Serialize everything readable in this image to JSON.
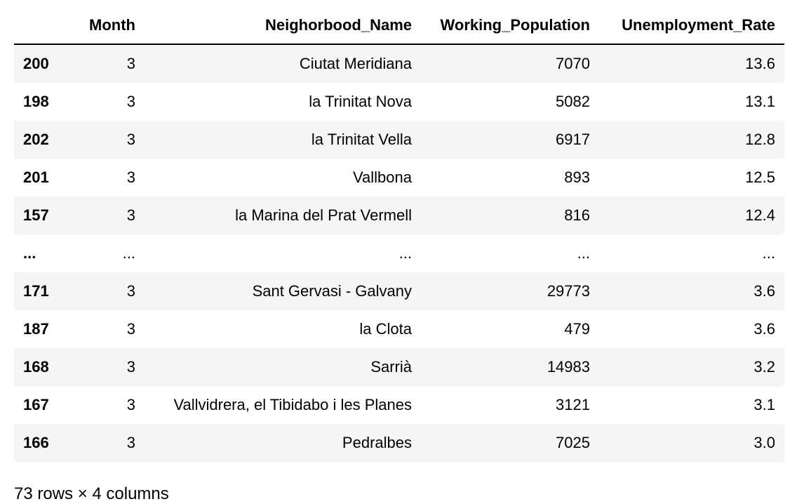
{
  "table": {
    "columns": [
      "",
      "Month",
      "Neighorbood_Name",
      "Working_Population",
      "Unemployment_Rate"
    ],
    "rows": [
      {
        "index": "200",
        "month": "3",
        "name": "Ciutat Meridiana",
        "population": "7070",
        "rate": "13.6"
      },
      {
        "index": "198",
        "month": "3",
        "name": "la Trinitat Nova",
        "population": "5082",
        "rate": "13.1"
      },
      {
        "index": "202",
        "month": "3",
        "name": "la Trinitat Vella",
        "population": "6917",
        "rate": "12.8"
      },
      {
        "index": "201",
        "month": "3",
        "name": "Vallbona",
        "population": "893",
        "rate": "12.5"
      },
      {
        "index": "157",
        "month": "3",
        "name": "la Marina del Prat Vermell",
        "population": "816",
        "rate": "12.4"
      },
      {
        "index": "...",
        "month": "...",
        "name": "...",
        "population": "...",
        "rate": "..."
      },
      {
        "index": "171",
        "month": "3",
        "name": "Sant Gervasi - Galvany",
        "population": "29773",
        "rate": "3.6"
      },
      {
        "index": "187",
        "month": "3",
        "name": "la Clota",
        "population": "479",
        "rate": "3.6"
      },
      {
        "index": "168",
        "month": "3",
        "name": "Sarrià",
        "population": "14983",
        "rate": "3.2"
      },
      {
        "index": "167",
        "month": "3",
        "name": "Vallvidrera, el Tibidabo i les Planes",
        "population": "3121",
        "rate": "3.1"
      },
      {
        "index": "166",
        "month": "3",
        "name": "Pedralbes",
        "population": "7025",
        "rate": "3.0"
      }
    ]
  },
  "footer": "73 rows × 4 columns"
}
